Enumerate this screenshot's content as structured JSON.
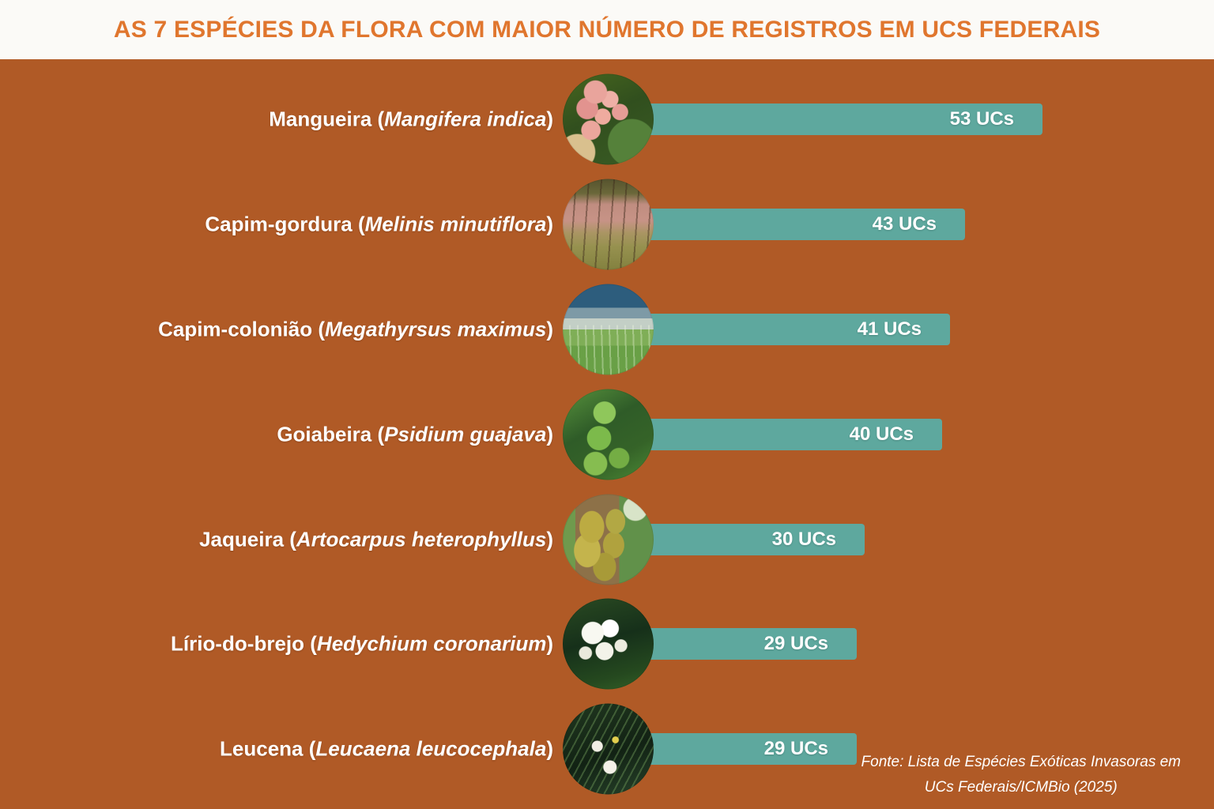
{
  "header": {
    "title": "AS 7 ESPÉCIES DA FLORA COM MAIOR NÚMERO DE REGISTROS EM UCS FEDERAIS"
  },
  "punctuation": {
    "open_paren": " (",
    "close_paren": ")"
  },
  "unit": "UCs",
  "rows": [
    {
      "common_name": "Mangueira",
      "scientific_name": "Mangifera indica",
      "value": 53,
      "value_label": "53 UCs",
      "image": "mango-fruits"
    },
    {
      "common_name": "Capim-gordura",
      "scientific_name": "Melinis minutiflora",
      "value": 43,
      "value_label": "43 UCs",
      "image": "molasses-grass"
    },
    {
      "common_name": "Capim-colonião",
      "scientific_name": "Megathyrsus maximus",
      "value": 41,
      "value_label": "41 UCs",
      "image": "guinea-grass"
    },
    {
      "common_name": "Goiabeira",
      "scientific_name": "Psidium guajava",
      "value": 40,
      "value_label": "40 UCs",
      "image": "guava-fruits"
    },
    {
      "common_name": "Jaqueira",
      "scientific_name": "Artocarpus heterophyllus",
      "value": 30,
      "value_label": "30 UCs",
      "image": "jackfruit-tree"
    },
    {
      "common_name": "Lírio-do-brejo",
      "scientific_name": "Hedychium coronarium",
      "value": 29,
      "value_label": "29 UCs",
      "image": "white-ginger-lily"
    },
    {
      "common_name": "Leucena",
      "scientific_name": "Leucaena leucocephala",
      "value": 29,
      "value_label": "29 UCs",
      "image": "leucaena-foliage"
    }
  ],
  "footer": {
    "line1": "Fonte: Lista de Espécies Exóticas Invasoras em",
    "line2": "UCs Federais/ICMBio (2025)"
  },
  "colors": {
    "background": "#b05a26",
    "bar": "#5ea89e",
    "title": "#e0762e",
    "header_background": "#fbfaf7",
    "text": "#ffffff"
  },
  "chart_data": {
    "type": "bar",
    "orientation": "horizontal",
    "title": "AS 7 ESPÉCIES DA FLORA COM MAIOR NÚMERO DE REGISTROS EM UCS FEDERAIS",
    "categories": [
      "Mangueira (Mangifera indica)",
      "Capim-gordura (Melinis minutiflora)",
      "Capim-colonião (Megathyrsus maximus)",
      "Goiabeira (Psidium guajava)",
      "Jaqueira (Artocarpus heterophyllus)",
      "Lírio-do-brejo (Hedychium coronarium)",
      "Leucena (Leucaena leucocephala)"
    ],
    "values": [
      53,
      43,
      41,
      40,
      30,
      29,
      29
    ],
    "unit": "UCs",
    "xlabel": "",
    "ylabel": "",
    "xlim": [
      0,
      53
    ],
    "grid": false,
    "legend": "none",
    "data_labels": [
      "53 UCs",
      "43 UCs",
      "41 UCs",
      "40 UCs",
      "30 UCs",
      "29 UCs",
      "29 UCs"
    ],
    "source": "Fonte: Lista de Espécies Exóticas Invasoras em UCs Federais/ICMBio (2025)"
  }
}
